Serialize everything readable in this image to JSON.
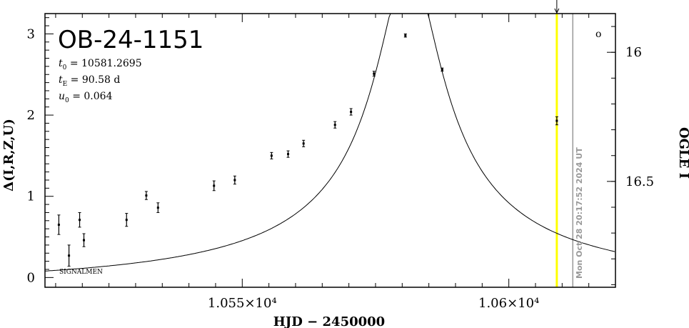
{
  "event_name": "OB-24-1151",
  "params": [
    {
      "symbol": "t",
      "sub": "0",
      "value": " = 10581.2695"
    },
    {
      "symbol": "t",
      "sub": "E",
      "value": " = 90.58 d"
    },
    {
      "symbol": "u",
      "sub": "0",
      "value": " = 0.064"
    }
  ],
  "signal_label": "SIGNALMEN",
  "timestamp": "Mon Oct 28 20:17:52 2024 UT",
  "open_circle": "o",
  "chart_data": {
    "type": "scatter",
    "xlabel": "HJD − 2450000",
    "ylabel_left": "Δ(I,R,Z,U)",
    "ylabel_right": "OGLE I",
    "xlim": [
      10513,
      10620
    ],
    "ylim_left": [
      -0.12,
      3.25
    ],
    "ylim_right": [
      16.91,
      15.85
    ],
    "x_ticks": [
      {
        "value": 10550,
        "label": "1.055×10⁴"
      },
      {
        "value": 10600,
        "label": "1.06×10⁴"
      }
    ],
    "y_ticks_left": [
      {
        "value": 0,
        "label": "0"
      },
      {
        "value": 1,
        "label": "1"
      },
      {
        "value": 2,
        "label": "2"
      },
      {
        "value": 3,
        "label": "3"
      }
    ],
    "y_ticks_right": [
      {
        "value": 16,
        "label": "16"
      },
      {
        "value": 16.5,
        "label": "16.5"
      }
    ],
    "series": [
      {
        "points": [
          {
            "x": 10515.6,
            "y": 0.65,
            "err": 0.12
          },
          {
            "x": 10517.5,
            "y": 0.27,
            "err": 0.13
          },
          {
            "x": 10519.5,
            "y": 0.71,
            "err": 0.09
          },
          {
            "x": 10520.3,
            "y": 0.46,
            "err": 0.08
          },
          {
            "x": 10528.3,
            "y": 0.71,
            "err": 0.08
          },
          {
            "x": 10532.0,
            "y": 1.01,
            "err": 0.05
          },
          {
            "x": 10534.2,
            "y": 0.86,
            "err": 0.06
          },
          {
            "x": 10544.7,
            "y": 1.13,
            "err": 0.06
          },
          {
            "x": 10548.6,
            "y": 1.2,
            "err": 0.05
          },
          {
            "x": 10555.5,
            "y": 1.5,
            "err": 0.04
          },
          {
            "x": 10558.6,
            "y": 1.52,
            "err": 0.04
          },
          {
            "x": 10561.5,
            "y": 1.65,
            "err": 0.04
          },
          {
            "x": 10567.4,
            "y": 1.88,
            "err": 0.04
          },
          {
            "x": 10570.4,
            "y": 2.04,
            "err": 0.04
          },
          {
            "x": 10574.7,
            "y": 2.51,
            "err": 0.03
          },
          {
            "x": 10580.6,
            "y": 2.98,
            "err": 0.02
          },
          {
            "x": 10587.5,
            "y": 2.56,
            "err": 0.02
          },
          {
            "x": 10609.0,
            "y": 1.93,
            "err": 0.05
          }
        ]
      }
    ],
    "model": {
      "t0": 10581.2695,
      "tE": 90.58,
      "u0": 0.064,
      "baseline_delta": -0.35,
      "scale": 0.27
    },
    "markers": {
      "current_time_x": 10609.0,
      "current_time_color": "#ffff00",
      "timestamp_line_x": 10612.0,
      "timestamp_line_color": "#999999"
    }
  }
}
